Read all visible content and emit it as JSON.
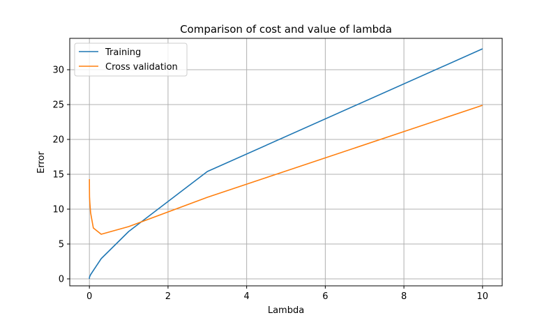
{
  "chart_data": {
    "type": "line",
    "title": "Comparison of cost and value of lambda",
    "xlabel": "Lambda",
    "ylabel": "Error",
    "xlim": [
      -0.5,
      10.5
    ],
    "ylim": [
      -1,
      34.5
    ],
    "xticks": [
      0,
      2,
      4,
      6,
      8,
      10
    ],
    "xtick_labels": [
      "0",
      "2",
      "4",
      "6",
      "8",
      "10"
    ],
    "yticks": [
      0,
      5,
      10,
      15,
      20,
      25,
      30
    ],
    "ytick_labels": [
      "0",
      "5",
      "10",
      "15",
      "20",
      "25",
      "30"
    ],
    "grid": true,
    "legend_position": "top-left",
    "x": [
      0,
      0.001,
      0.003,
      0.01,
      0.03,
      0.1,
      0.3,
      1,
      3,
      10
    ],
    "series": [
      {
        "name": "Training",
        "color": "#1f77b4",
        "values": [
          0.0,
          0.2,
          0.25,
          0.35,
          0.6,
          1.2,
          2.9,
          6.8,
          15.4,
          33.0
        ]
      },
      {
        "name": "Cross validation",
        "color": "#ff7f0e",
        "values": [
          14.3,
          13.0,
          11.8,
          11.0,
          9.5,
          7.3,
          6.4,
          7.5,
          11.7,
          24.9
        ]
      }
    ]
  }
}
